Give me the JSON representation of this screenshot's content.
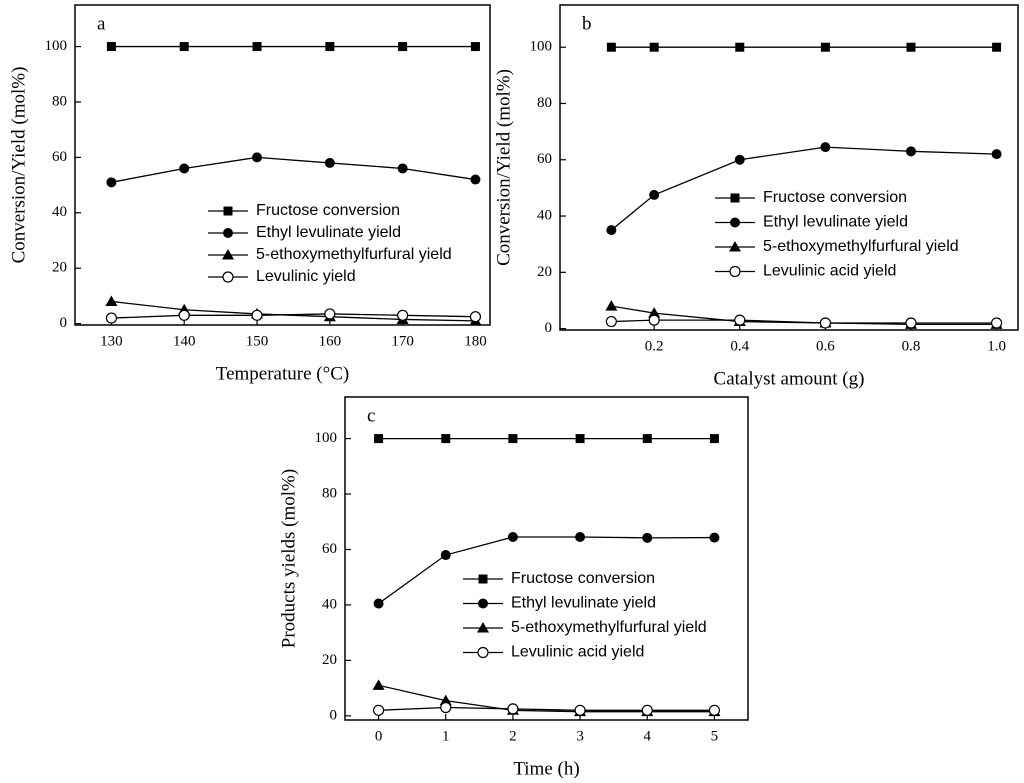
{
  "chart_data": [
    {
      "type": "line",
      "panel_label": "a",
      "xlabel": "Temperature (°C)",
      "ylabel": "Conversion/Yield (mol%)",
      "x": [
        130,
        140,
        150,
        160,
        170,
        180
      ],
      "xlim": [
        125,
        182
      ],
      "xticks": [
        130,
        140,
        150,
        160,
        170,
        180
      ],
      "ylim": [
        -0.5,
        115
      ],
      "yticks": [
        0,
        20,
        40,
        60,
        80,
        100
      ],
      "series": [
        {
          "name": "Fructose conversion",
          "color": "#000000",
          "values": [
            100,
            100,
            100,
            100,
            100,
            100
          ]
        },
        {
          "name": "Ethyl levulinate yield",
          "color": "#000000",
          "values": [
            51,
            56,
            60,
            58,
            56,
            52
          ]
        },
        {
          "name": "5-ethoxymethylfurfural yield",
          "color": "#000000",
          "values": [
            8,
            5,
            3.5,
            2.5,
            1.5,
            1
          ]
        },
        {
          "name": "Levulinic yield",
          "color": "#000000",
          "values": [
            2,
            3,
            3,
            3.5,
            3,
            2.5
          ]
        }
      ]
    },
    {
      "type": "line",
      "panel_label": "b",
      "xlabel": "Catalyst amount (g)",
      "ylabel": "Conversion/Yield (mol%)",
      "x": [
        0.1,
        0.2,
        0.4,
        0.6,
        0.8,
        1.0
      ],
      "xlim": [
        -0.02,
        1.05
      ],
      "xticks": [
        0.2,
        0.4,
        0.6,
        0.8,
        {
          "value": 1,
          "label": "1.0"
        }
      ],
      "ylim": [
        -0.5,
        115
      ],
      "yticks": [
        0,
        20,
        40,
        60,
        80,
        100
      ],
      "series": [
        {
          "name": "Fructose conversion",
          "color": "#000000",
          "values": [
            100,
            100,
            100,
            100,
            100,
            100
          ]
        },
        {
          "name": "Ethyl levulinate yield",
          "color": "#000000",
          "values": [
            35,
            47.5,
            60,
            64.5,
            63,
            62
          ]
        },
        {
          "name": "5-ethoxymethylfurfural yield",
          "color": "#000000",
          "values": [
            8,
            5.5,
            2.5,
            2,
            1.5,
            1.5
          ]
        },
        {
          "name": "Levulinic acid yield",
          "color": "#000000",
          "values": [
            2.5,
            3,
            3,
            2,
            2,
            2
          ]
        }
      ]
    },
    {
      "type": "line",
      "panel_label": "c",
      "xlabel": "Time (h)",
      "ylabel": "Products yields (mol%)",
      "x": [
        0,
        1,
        2,
        3,
        4,
        5
      ],
      "xlim": [
        -0.5,
        5.5
      ],
      "xticks": [
        0,
        1,
        2,
        3,
        4,
        5
      ],
      "ylim": [
        -1.5,
        115
      ],
      "yticks": [
        0,
        20,
        40,
        60,
        80,
        100
      ],
      "series": [
        {
          "name": "Fructose conversion",
          "color": "#000000",
          "values": [
            100,
            100,
            100,
            100,
            100,
            100
          ]
        },
        {
          "name": "Ethyl levulinate yield",
          "color": "#000000",
          "values": [
            40.5,
            58,
            64.5,
            64.5,
            64.2,
            64.3
          ]
        },
        {
          "name": "5-ethoxymethylfurfural yield",
          "color": "#000000",
          "values": [
            11,
            5.5,
            2,
            1.5,
            1.5,
            1.5
          ]
        },
        {
          "name": "Levulinic acid yield",
          "color": "#000000",
          "values": [
            2,
            3,
            2.5,
            2,
            2,
            2
          ]
        }
      ]
    }
  ]
}
